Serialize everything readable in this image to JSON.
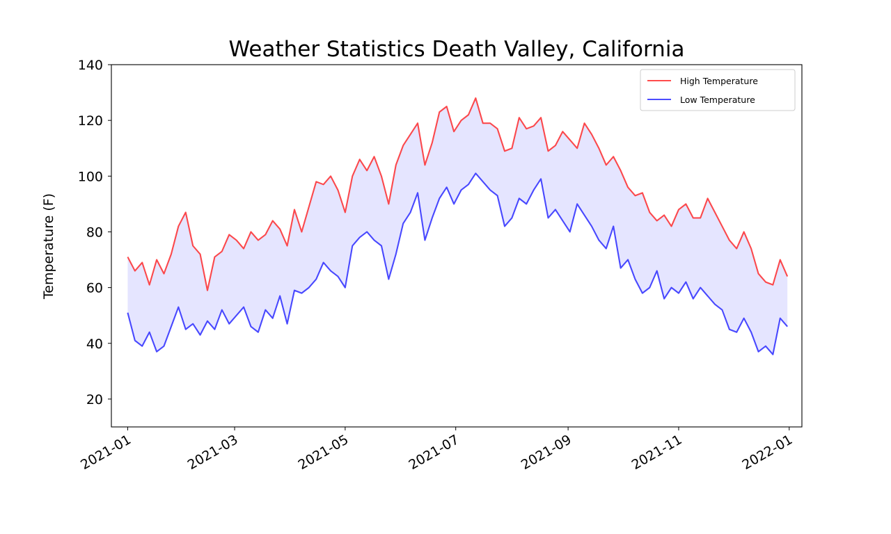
{
  "chart_data": {
    "type": "line",
    "title": "Weather Statistics Death Valley, California",
    "xlabel": "",
    "ylabel": "Temperature (F)",
    "ylim": [
      10,
      140
    ],
    "xlim": [
      "2020-12-23",
      "2022-01-08"
    ],
    "yticks": [
      20,
      40,
      60,
      80,
      100,
      120,
      140
    ],
    "xticks": [
      "2021-01",
      "2021-03",
      "2021-05",
      "2021-07",
      "2021-09",
      "2021-11",
      "2022-01"
    ],
    "grid": false,
    "legend_position": "upper right",
    "fill_between": {
      "color": "#0000ff",
      "alpha": 0.1
    },
    "series": [
      {
        "name": "High Temperature",
        "color": "#ff0000",
        "points": [
          [
            "2021-01-01",
            71
          ],
          [
            "2021-01-05",
            66
          ],
          [
            "2021-01-09",
            69
          ],
          [
            "2021-01-13",
            61
          ],
          [
            "2021-01-17",
            70
          ],
          [
            "2021-01-21",
            65
          ],
          [
            "2021-01-25",
            72
          ],
          [
            "2021-01-29",
            82
          ],
          [
            "2021-02-02",
            87
          ],
          [
            "2021-02-06",
            75
          ],
          [
            "2021-02-10",
            72
          ],
          [
            "2021-02-14",
            59
          ],
          [
            "2021-02-18",
            71
          ],
          [
            "2021-02-22",
            73
          ],
          [
            "2021-02-26",
            79
          ],
          [
            "2021-03-02",
            77
          ],
          [
            "2021-03-06",
            74
          ],
          [
            "2021-03-10",
            80
          ],
          [
            "2021-03-14",
            77
          ],
          [
            "2021-03-18",
            79
          ],
          [
            "2021-03-22",
            84
          ],
          [
            "2021-03-26",
            81
          ],
          [
            "2021-03-30",
            75
          ],
          [
            "2021-04-03",
            88
          ],
          [
            "2021-04-07",
            80
          ],
          [
            "2021-04-11",
            89
          ],
          [
            "2021-04-15",
            98
          ],
          [
            "2021-04-19",
            97
          ],
          [
            "2021-04-23",
            100
          ],
          [
            "2021-04-27",
            95
          ],
          [
            "2021-05-01",
            87
          ],
          [
            "2021-05-05",
            100
          ],
          [
            "2021-05-09",
            106
          ],
          [
            "2021-05-13",
            102
          ],
          [
            "2021-05-17",
            107
          ],
          [
            "2021-05-21",
            100
          ],
          [
            "2021-05-25",
            90
          ],
          [
            "2021-05-29",
            104
          ],
          [
            "2021-06-02",
            111
          ],
          [
            "2021-06-06",
            115
          ],
          [
            "2021-06-10",
            119
          ],
          [
            "2021-06-14",
            104
          ],
          [
            "2021-06-18",
            112
          ],
          [
            "2021-06-22",
            123
          ],
          [
            "2021-06-26",
            125
          ],
          [
            "2021-06-30",
            116
          ],
          [
            "2021-07-04",
            120
          ],
          [
            "2021-07-08",
            122
          ],
          [
            "2021-07-12",
            128
          ],
          [
            "2021-07-16",
            119
          ],
          [
            "2021-07-20",
            119
          ],
          [
            "2021-07-24",
            117
          ],
          [
            "2021-07-28",
            109
          ],
          [
            "2021-08-01",
            110
          ],
          [
            "2021-08-05",
            121
          ],
          [
            "2021-08-09",
            117
          ],
          [
            "2021-08-13",
            118
          ],
          [
            "2021-08-17",
            121
          ],
          [
            "2021-08-21",
            109
          ],
          [
            "2021-08-25",
            111
          ],
          [
            "2021-08-29",
            116
          ],
          [
            "2021-09-02",
            113
          ],
          [
            "2021-09-06",
            110
          ],
          [
            "2021-09-10",
            119
          ],
          [
            "2021-09-14",
            115
          ],
          [
            "2021-09-18",
            110
          ],
          [
            "2021-09-22",
            104
          ],
          [
            "2021-09-26",
            107
          ],
          [
            "2021-09-30",
            102
          ],
          [
            "2021-10-04",
            96
          ],
          [
            "2021-10-08",
            93
          ],
          [
            "2021-10-12",
            94
          ],
          [
            "2021-10-16",
            87
          ],
          [
            "2021-10-20",
            84
          ],
          [
            "2021-10-24",
            86
          ],
          [
            "2021-10-28",
            82
          ],
          [
            "2021-11-01",
            88
          ],
          [
            "2021-11-05",
            90
          ],
          [
            "2021-11-09",
            85
          ],
          [
            "2021-11-13",
            85
          ],
          [
            "2021-11-17",
            92
          ],
          [
            "2021-11-21",
            87
          ],
          [
            "2021-11-25",
            82
          ],
          [
            "2021-11-29",
            77
          ],
          [
            "2021-12-03",
            74
          ],
          [
            "2021-12-07",
            80
          ],
          [
            "2021-12-11",
            74
          ],
          [
            "2021-12-15",
            65
          ],
          [
            "2021-12-19",
            62
          ],
          [
            "2021-12-23",
            61
          ],
          [
            "2021-12-27",
            70
          ],
          [
            "2021-12-31",
            64
          ]
        ]
      },
      {
        "name": "Low Temperature",
        "color": "#0000ff",
        "points": [
          [
            "2021-01-01",
            51
          ],
          [
            "2021-01-05",
            41
          ],
          [
            "2021-01-09",
            39
          ],
          [
            "2021-01-13",
            44
          ],
          [
            "2021-01-17",
            37
          ],
          [
            "2021-01-21",
            39
          ],
          [
            "2021-01-25",
            46
          ],
          [
            "2021-01-29",
            53
          ],
          [
            "2021-02-02",
            45
          ],
          [
            "2021-02-06",
            47
          ],
          [
            "2021-02-10",
            43
          ],
          [
            "2021-02-14",
            48
          ],
          [
            "2021-02-18",
            45
          ],
          [
            "2021-02-22",
            52
          ],
          [
            "2021-02-26",
            47
          ],
          [
            "2021-03-02",
            50
          ],
          [
            "2021-03-06",
            53
          ],
          [
            "2021-03-10",
            46
          ],
          [
            "2021-03-14",
            44
          ],
          [
            "2021-03-18",
            52
          ],
          [
            "2021-03-22",
            49
          ],
          [
            "2021-03-26",
            57
          ],
          [
            "2021-03-30",
            47
          ],
          [
            "2021-04-03",
            59
          ],
          [
            "2021-04-07",
            58
          ],
          [
            "2021-04-11",
            60
          ],
          [
            "2021-04-15",
            63
          ],
          [
            "2021-04-19",
            69
          ],
          [
            "2021-04-23",
            66
          ],
          [
            "2021-04-27",
            64
          ],
          [
            "2021-05-01",
            60
          ],
          [
            "2021-05-05",
            75
          ],
          [
            "2021-05-09",
            78
          ],
          [
            "2021-05-13",
            80
          ],
          [
            "2021-05-17",
            77
          ],
          [
            "2021-05-21",
            75
          ],
          [
            "2021-05-25",
            63
          ],
          [
            "2021-05-29",
            72
          ],
          [
            "2021-06-02",
            83
          ],
          [
            "2021-06-06",
            87
          ],
          [
            "2021-06-10",
            94
          ],
          [
            "2021-06-14",
            77
          ],
          [
            "2021-06-18",
            85
          ],
          [
            "2021-06-22",
            92
          ],
          [
            "2021-06-26",
            96
          ],
          [
            "2021-06-30",
            90
          ],
          [
            "2021-07-04",
            95
          ],
          [
            "2021-07-08",
            97
          ],
          [
            "2021-07-12",
            101
          ],
          [
            "2021-07-16",
            98
          ],
          [
            "2021-07-20",
            95
          ],
          [
            "2021-07-24",
            93
          ],
          [
            "2021-07-28",
            82
          ],
          [
            "2021-08-01",
            85
          ],
          [
            "2021-08-05",
            92
          ],
          [
            "2021-08-09",
            90
          ],
          [
            "2021-08-13",
            95
          ],
          [
            "2021-08-17",
            99
          ],
          [
            "2021-08-21",
            85
          ],
          [
            "2021-08-25",
            88
          ],
          [
            "2021-08-29",
            84
          ],
          [
            "2021-09-02",
            80
          ],
          [
            "2021-09-06",
            90
          ],
          [
            "2021-09-10",
            86
          ],
          [
            "2021-09-14",
            82
          ],
          [
            "2021-09-18",
            77
          ],
          [
            "2021-09-22",
            74
          ],
          [
            "2021-09-26",
            82
          ],
          [
            "2021-09-30",
            67
          ],
          [
            "2021-10-04",
            70
          ],
          [
            "2021-10-08",
            63
          ],
          [
            "2021-10-12",
            58
          ],
          [
            "2021-10-16",
            60
          ],
          [
            "2021-10-20",
            66
          ],
          [
            "2021-10-24",
            56
          ],
          [
            "2021-10-28",
            60
          ],
          [
            "2021-11-01",
            58
          ],
          [
            "2021-11-05",
            62
          ],
          [
            "2021-11-09",
            56
          ],
          [
            "2021-11-13",
            60
          ],
          [
            "2021-11-17",
            57
          ],
          [
            "2021-11-21",
            54
          ],
          [
            "2021-11-25",
            52
          ],
          [
            "2021-11-29",
            45
          ],
          [
            "2021-12-03",
            44
          ],
          [
            "2021-12-07",
            49
          ],
          [
            "2021-12-11",
            44
          ],
          [
            "2021-12-15",
            37
          ],
          [
            "2021-12-19",
            39
          ],
          [
            "2021-12-23",
            36
          ],
          [
            "2021-12-27",
            49
          ],
          [
            "2021-12-31",
            46
          ]
        ]
      }
    ]
  }
}
